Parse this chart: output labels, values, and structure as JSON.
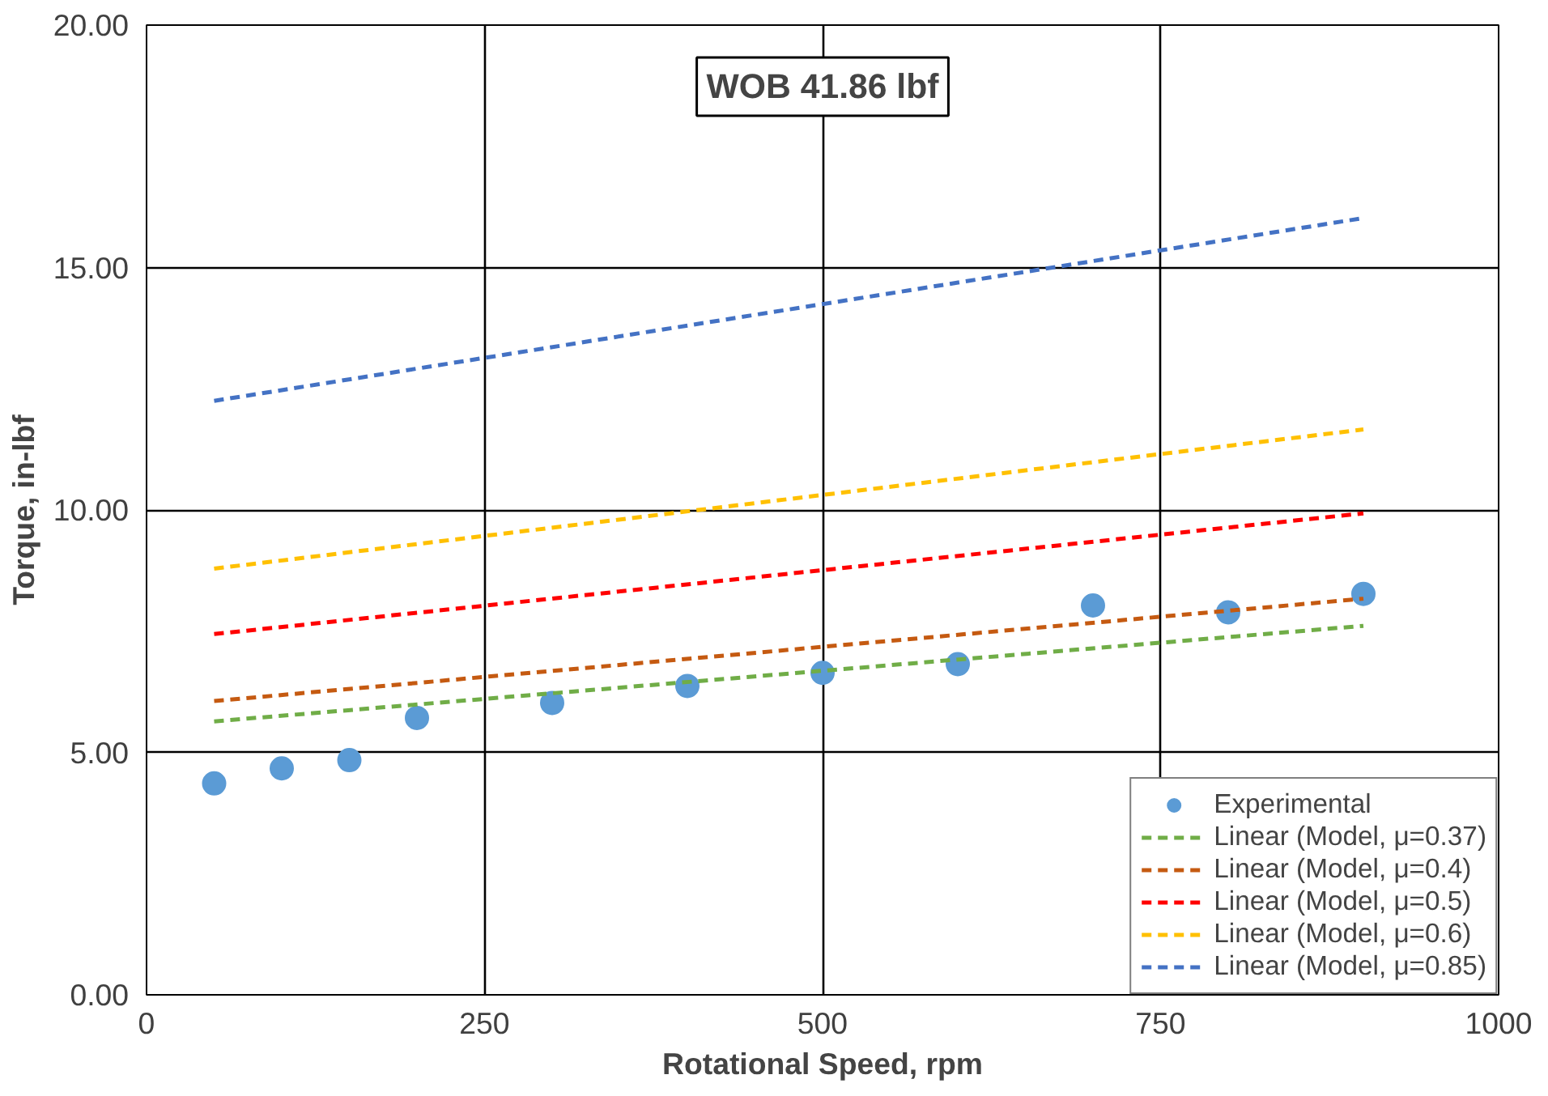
{
  "chart_data": {
    "type": "scatter",
    "title": "WOB 41.86 lbf",
    "xlabel": "Rotational Speed, rpm",
    "ylabel": "Torque, in-lbf",
    "xlim": [
      0,
      1000
    ],
    "xticks": [
      0,
      250,
      500,
      750,
      1000
    ],
    "ylim": [
      0,
      20
    ],
    "yticks": [
      {
        "value": 0,
        "label": "0.00"
      },
      {
        "value": 5,
        "label": "5.00"
      },
      {
        "value": 10,
        "label": "10.00"
      },
      {
        "value": 15,
        "label": "15.00"
      },
      {
        "value": 20,
        "label": "20.00"
      }
    ],
    "grid": true,
    "legend": "bottom right",
    "series": [
      {
        "name": "Experimental",
        "marker": "circle",
        "color": "#5b9bd5",
        "x": [
          50,
          100,
          150,
          200,
          300,
          400,
          500,
          600,
          700,
          800,
          900
        ],
        "values": [
          4.36,
          4.67,
          4.84,
          5.71,
          6.02,
          6.37,
          6.64,
          6.82,
          8.03,
          7.89,
          8.27
        ]
      },
      {
        "name": "Linear (Model, μ=0.37)",
        "type": "line",
        "line_style": "dashed",
        "color": "#70ad47",
        "x": [
          50,
          900
        ],
        "values": [
          5.64,
          7.61
        ]
      },
      {
        "name": "Linear (Model, μ=0.4)",
        "type": "line",
        "line_style": "dashed",
        "color": "#c55a11",
        "x": [
          50,
          900
        ],
        "values": [
          6.06,
          8.17
        ]
      },
      {
        "name": "Linear (Model, μ=0.5)",
        "type": "line",
        "line_style": "dashed",
        "color": "#ff0000",
        "x": [
          50,
          900
        ],
        "values": [
          7.44,
          9.93
        ]
      },
      {
        "name": "Linear (Model, μ=0.6)",
        "type": "line",
        "line_style": "dashed",
        "color": "#ffc000",
        "x": [
          50,
          900
        ],
        "values": [
          8.79,
          11.66
        ]
      },
      {
        "name": "Linear (Model, μ=0.85)",
        "type": "line",
        "line_style": "dashed",
        "color": "#4472c4",
        "x": [
          50,
          900
        ],
        "values": [
          12.25,
          16.02
        ]
      }
    ]
  }
}
